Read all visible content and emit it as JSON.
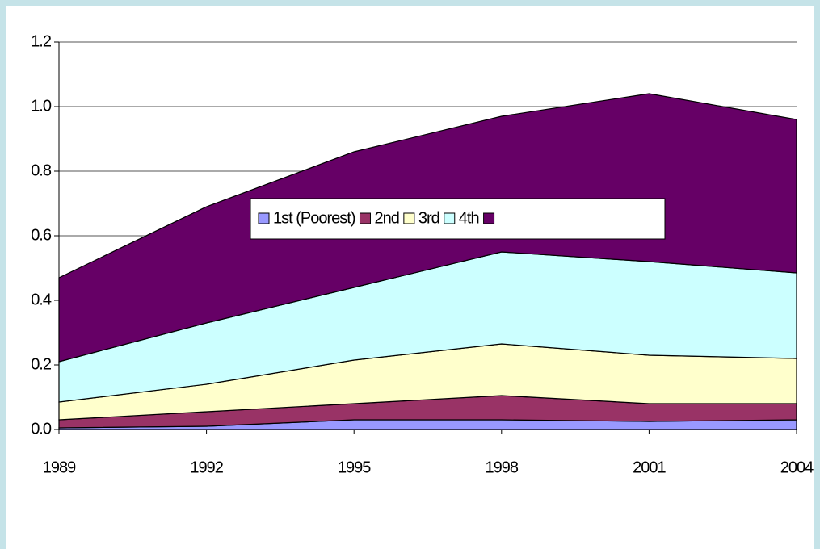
{
  "chart_data": {
    "type": "stacked-area",
    "x": [
      1989,
      1992,
      1995,
      1998,
      2001,
      2004
    ],
    "xlim": [
      1989,
      2004
    ],
    "xticks": [
      1989,
      1992,
      1995,
      1998,
      2001,
      2004
    ],
    "ylim": [
      0,
      1.2
    ],
    "yticks": [
      {
        "value": 0,
        "label": "0.0"
      },
      0.2,
      0.4,
      0.6,
      0.8,
      {
        "value": 1,
        "label": "1.0"
      },
      1.2
    ],
    "grid": true,
    "legend": "center",
    "series": [
      {
        "name": "1st (Poorest)",
        "color": "#9999ff",
        "values": [
          0.005,
          0.01,
          0.03,
          0.03,
          0.025,
          0.03
        ]
      },
      {
        "name": "2nd",
        "color": "#993366",
        "values": [
          0.025,
          0.045,
          0.05,
          0.075,
          0.055,
          0.05
        ]
      },
      {
        "name": "3rd",
        "color": "#ffffcc",
        "values": [
          0.055,
          0.085,
          0.135,
          0.16,
          0.15,
          0.14
        ]
      },
      {
        "name": "4th",
        "color": "#ccffff",
        "values": [
          0.125,
          0.19,
          0.225,
          0.285,
          0.29,
          0.265
        ]
      },
      {
        "color": "#660066",
        "values": [
          0.26,
          0.36,
          0.42,
          0.42,
          0.52,
          0.475
        ]
      }
    ]
  }
}
